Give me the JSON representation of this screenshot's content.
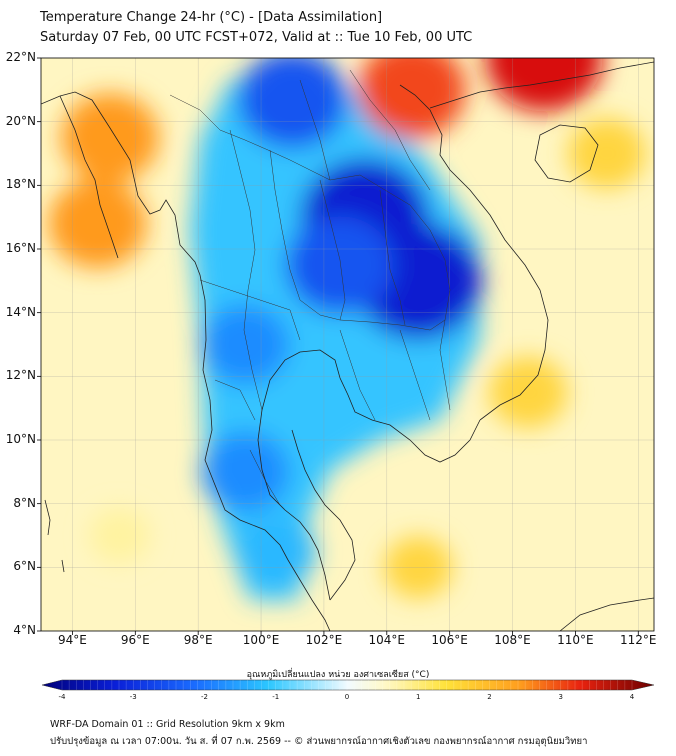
{
  "title": {
    "line1": "Temperature Change 24-hr (°C) - [Data Assimilation]",
    "line2": "Saturday 07 Feb, 00 UTC FCST+072, Valid at :: Tue 10 Feb, 00 UTC"
  },
  "map": {
    "lat_ticks": [
      "22°N",
      "20°N",
      "18°N",
      "16°N",
      "14°N",
      "12°N",
      "10°N",
      "8°N",
      "6°N",
      "4°N"
    ],
    "lon_ticks": [
      "94°E",
      "96°E",
      "98°E",
      "100°E",
      "102°E",
      "104°E",
      "106°E",
      "108°E",
      "110°E",
      "112°E"
    ],
    "lat_range": [
      4,
      22
    ],
    "lon_range": [
      93,
      112.5
    ],
    "field_hotspots": [
      {
        "lon": 103.3,
        "lat": 17.0,
        "value": -4
      },
      {
        "lon": 105.0,
        "lat": 15.0,
        "value": -4
      },
      {
        "lon": 101.0,
        "lat": 20.7,
        "value": -3
      },
      {
        "lon": 102.5,
        "lat": 15.5,
        "value": -3
      },
      {
        "lon": 99.5,
        "lat": 13.0,
        "value": -2
      },
      {
        "lon": 99.5,
        "lat": 9.0,
        "value": -2
      },
      {
        "lon": 100.5,
        "lat": 6.5,
        "value": -1.5
      },
      {
        "lon": 95.2,
        "lat": 19.5,
        "value": 2.5
      },
      {
        "lon": 94.8,
        "lat": 16.8,
        "value": 2.5
      },
      {
        "lon": 104.8,
        "lat": 21.0,
        "value": 3
      },
      {
        "lon": 109.0,
        "lat": 22.0,
        "value": 3.5
      },
      {
        "lon": 111.0,
        "lat": 19.0,
        "value": 1.5
      },
      {
        "lon": 108.5,
        "lat": 11.5,
        "value": 1.5
      },
      {
        "lon": 105.0,
        "lat": 6.0,
        "value": 1.0
      },
      {
        "lon": 95.5,
        "lat": 7.0,
        "value": 0.6
      }
    ],
    "colors": {
      "coast": "#222222",
      "grid": "#999999"
    }
  },
  "colorbar": {
    "label": "อุณหภูมิเปลี่ยนแปลง หน่วย องศาเซลเซียส (°C)",
    "ticks": [
      "-4",
      "-3",
      "-2",
      "-1",
      "0",
      "1",
      "2",
      "3",
      "4"
    ],
    "range": [
      -4,
      4
    ]
  },
  "footer": {
    "line1": "WRF-DA Domain 01 :: Grid Resolution 9km x 9km",
    "line2": "ปรับปรุงข้อมูล ณ เวลา 07:00น. วัน ส. ที่ 07 ก.พ. 2569 -- © ส่วนพยากรณ์อากาศเชิงตัวเลข กองพยากรณ์อากาศ กรมอุตุนิยมวิทยา"
  }
}
